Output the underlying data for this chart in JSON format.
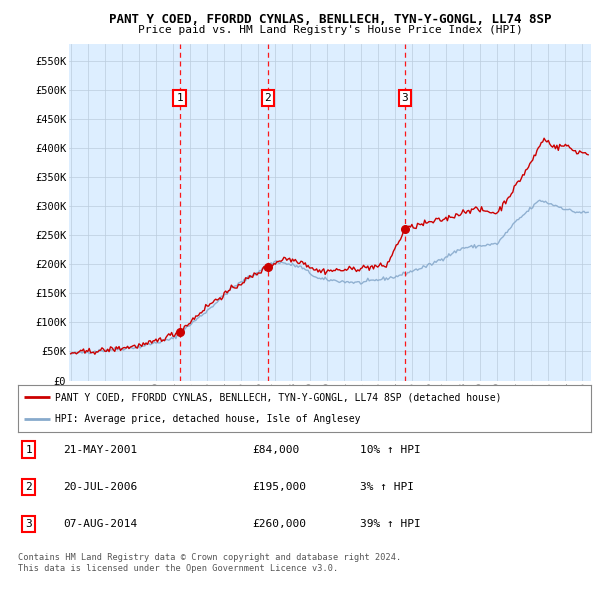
{
  "title": "PANT Y COED, FFORDD CYNLAS, BENLLECH, TYN-Y-GONGL, LL74 8SP",
  "subtitle": "Price paid vs. HM Land Registry's House Price Index (HPI)",
  "yticks": [
    0,
    50000,
    100000,
    150000,
    200000,
    250000,
    300000,
    350000,
    400000,
    450000,
    500000,
    550000
  ],
  "ytick_labels": [
    "£0",
    "£50K",
    "£100K",
    "£150K",
    "£200K",
    "£250K",
    "£300K",
    "£350K",
    "£400K",
    "£450K",
    "£500K",
    "£550K"
  ],
  "ylim": [
    0,
    578000
  ],
  "xlim_start": 1994.9,
  "xlim_end": 2025.5,
  "red_line_color": "#cc0000",
  "blue_line_color": "#88aacc",
  "background_color": "#ddeeff",
  "grid_color": "#bbccdd",
  "sale_markers": [
    {
      "year": 2001.385,
      "price": 84000,
      "label": "1"
    },
    {
      "year": 2006.548,
      "price": 195000,
      "label": "2"
    },
    {
      "year": 2014.597,
      "price": 260000,
      "label": "3"
    }
  ],
  "legend_line1": "PANT Y COED, FFORDD CYNLAS, BENLLECH, TYN-Y-GONGL, LL74 8SP (detached house)",
  "legend_line2": "HPI: Average price, detached house, Isle of Anglesey",
  "table_data": [
    {
      "num": "1",
      "date": "21-MAY-2001",
      "price": "£84,000",
      "change": "10% ↑ HPI"
    },
    {
      "num": "2",
      "date": "20-JUL-2006",
      "price": "£195,000",
      "change": "3% ↑ HPI"
    },
    {
      "num": "3",
      "date": "07-AUG-2014",
      "price": "£260,000",
      "change": "39% ↑ HPI"
    }
  ],
  "footer": "Contains HM Land Registry data © Crown copyright and database right 2024.\nThis data is licensed under the Open Government Licence v3.0."
}
